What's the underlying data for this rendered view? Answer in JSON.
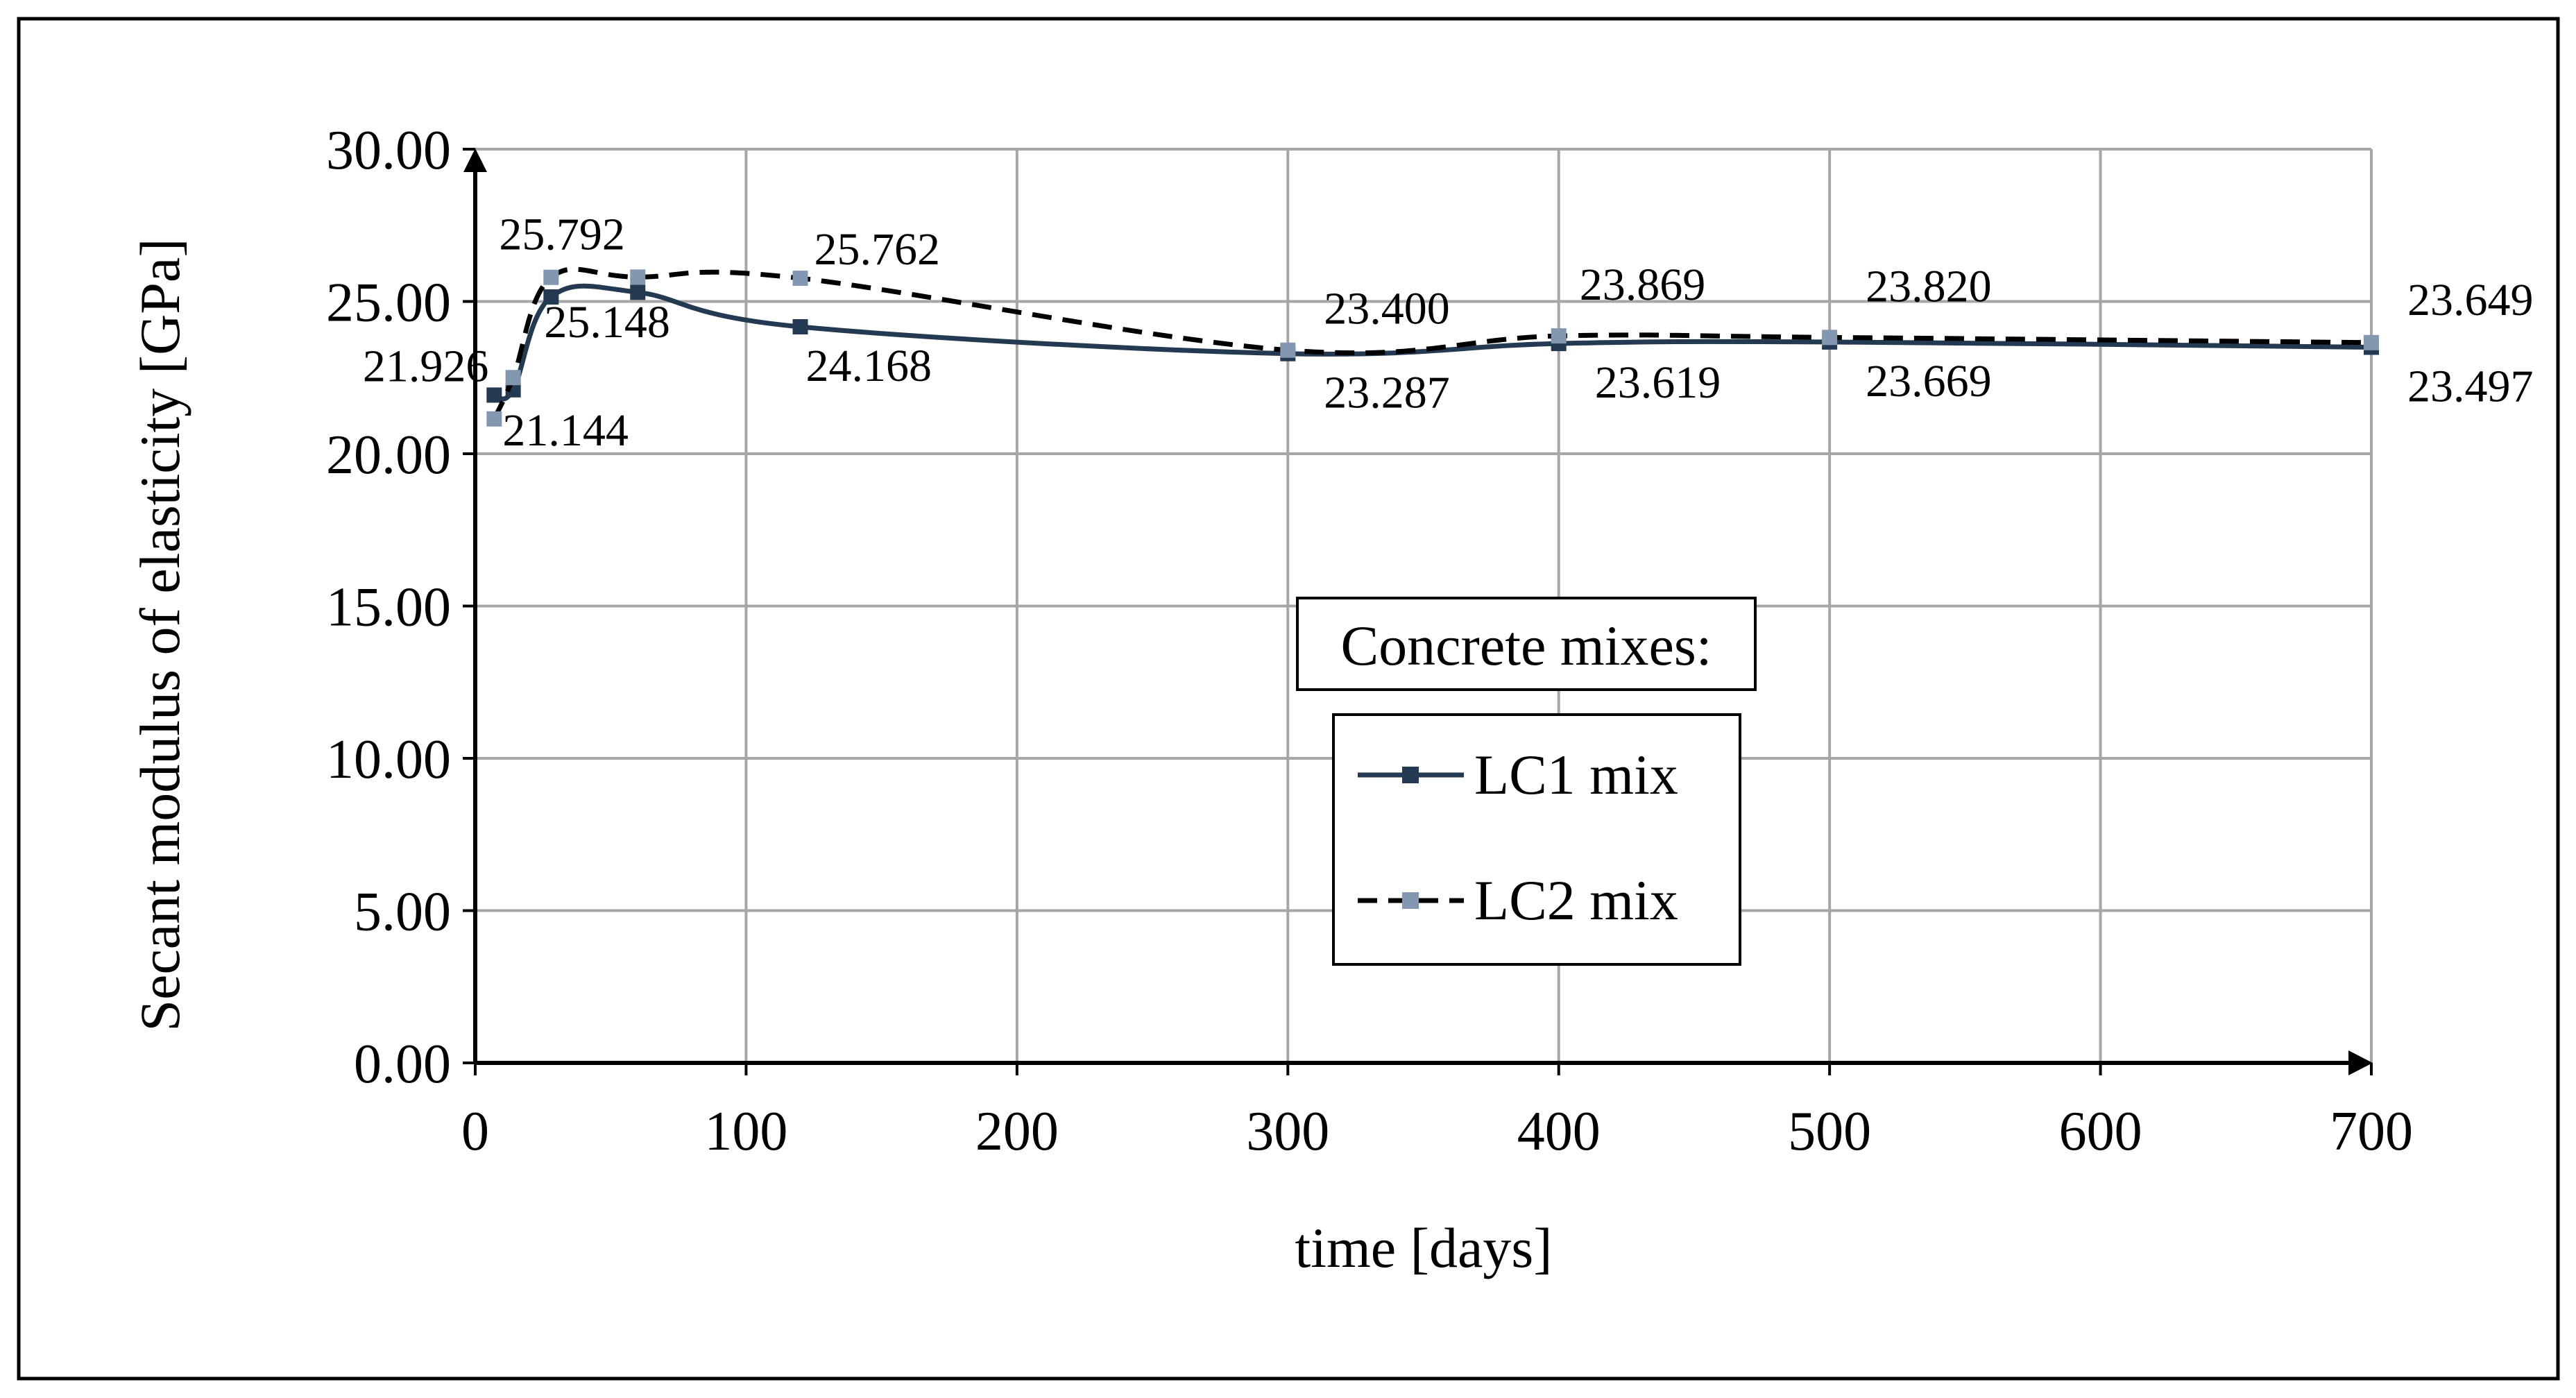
{
  "chart_data": {
    "type": "line",
    "title": "",
    "xlabel": "time [days]",
    "ylabel": "Secant modulus of elasticity [GPa]",
    "xlim": [
      0,
      700
    ],
    "ylim": [
      0,
      30
    ],
    "xticks": [
      "0",
      "100",
      "200",
      "300",
      "400",
      "500",
      "600",
      "700"
    ],
    "yticks": [
      "0.00",
      "5.00",
      "10.00",
      "15.00",
      "20.00",
      "25.00",
      "30.00"
    ],
    "grid": true,
    "legend_title": "Concrete mixes:",
    "legend_position": "center-right",
    "x": [
      7,
      14,
      28,
      60,
      120,
      300,
      400,
      500,
      700
    ],
    "series": [
      {
        "name": "LC1 mix",
        "color": "#243a52",
        "line_style": "solid",
        "values": [
          21.926,
          22.1,
          25.148,
          25.3,
          24.168,
          23.287,
          23.619,
          23.669,
          23.497
        ],
        "labels": [
          "21.926",
          "",
          "25.148",
          "",
          "24.168",
          "23.287",
          "23.619",
          "23.669",
          "23.497"
        ]
      },
      {
        "name": "LC2 mix",
        "color": "#000000",
        "marker_color": "#8497b0",
        "line_style": "dashed",
        "values": [
          21.144,
          22.5,
          25.792,
          25.8,
          25.762,
          23.4,
          23.869,
          23.82,
          23.649
        ],
        "labels": [
          "21.144",
          "",
          "25.792",
          "",
          "25.762",
          "23.400",
          "23.869",
          "23.820",
          "23.649"
        ]
      }
    ]
  }
}
